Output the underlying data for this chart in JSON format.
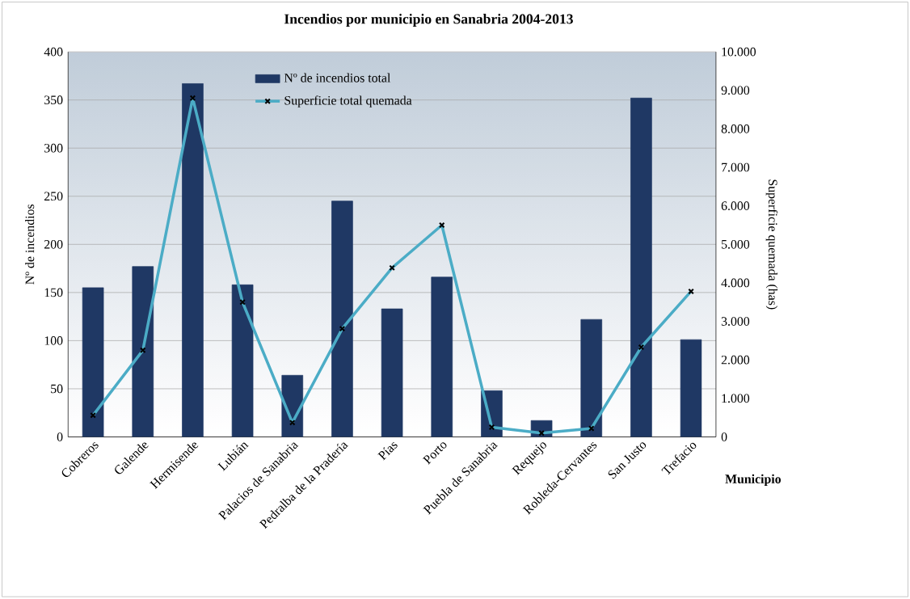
{
  "chart_data": {
    "type": "bar",
    "title": "Incendios por municipio en Sanabria 2004-2013",
    "xlabel": "Municipio",
    "ylabel": "Nº de incendios",
    "y2label": "Superficie quemada (has)",
    "categories": [
      "Cobreros",
      "Galende",
      "Hermisende",
      "Lubián",
      "Palacios de Sanabria",
      "Pedralba de la Pradería",
      "Pías",
      "Porto",
      "Puebla de Sanabria",
      "Requejo",
      "Robleda-Cervantes",
      "San Justo",
      "Trefacio"
    ],
    "series": [
      {
        "name": "Nº de incendios total",
        "color": "#1f3864",
        "values": [
          155,
          177,
          367,
          158,
          64,
          245,
          133,
          166,
          48,
          17,
          122,
          352,
          101
        ]
      },
      {
        "name": "Superficie total quemada",
        "type": "line",
        "axis": "y2",
        "color": "#4bacc6",
        "marker": "cross",
        "values": [
          560,
          2250,
          8800,
          3500,
          370,
          2810,
          4390,
          5500,
          250,
          100,
          220,
          2330,
          3780
        ]
      }
    ],
    "ylim": [
      0,
      400
    ],
    "yticks": [
      0,
      50,
      100,
      150,
      200,
      250,
      300,
      350,
      400
    ],
    "y2lim": [
      0,
      10000
    ],
    "y2ticks": [
      0,
      {
        "value": 1000,
        "label": "1.000"
      },
      {
        "value": 2000,
        "label": "2.000"
      },
      {
        "value": 3000,
        "label": "3.000"
      },
      {
        "value": 4000,
        "label": "4.000"
      },
      {
        "value": 5000,
        "label": "5.000"
      },
      {
        "value": 6000,
        "label": "6.000"
      },
      {
        "value": 7000,
        "label": "7.000"
      },
      {
        "value": 8000,
        "label": "8.000"
      },
      {
        "value": 9000,
        "label": "9.000"
      },
      {
        "value": 10000,
        "label": "10.000"
      }
    ],
    "grid": "y",
    "legend": "top"
  }
}
